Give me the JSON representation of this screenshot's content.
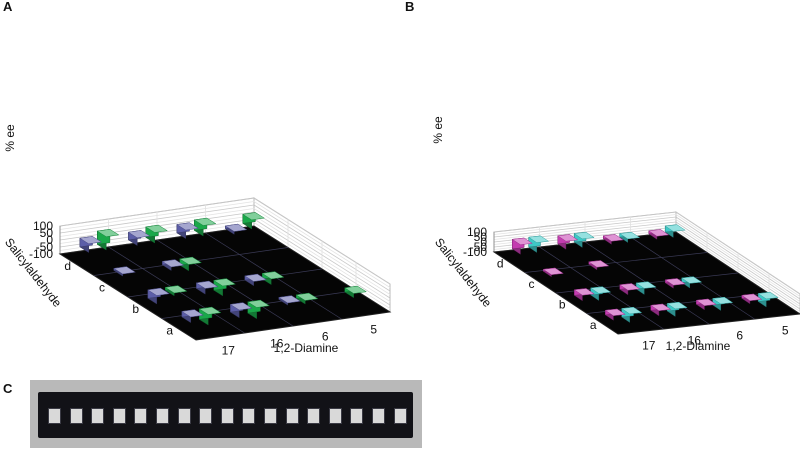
{
  "panels": {
    "a": {
      "letter": "A"
    },
    "b": {
      "letter": "B"
    },
    "c": {
      "letter": "C"
    }
  },
  "chart_data": [
    {
      "type": "bar",
      "subtype": "3d-bar",
      "panel": "A",
      "zlabel": "% ee",
      "zlim": [
        -100,
        100
      ],
      "zticks": [
        "100",
        "50",
        "0",
        "-50",
        "-100"
      ],
      "xlabel": "1,2-Diamine",
      "xticks": [
        "17",
        "16",
        "6",
        "5"
      ],
      "ylabel": "Salicylaldehyde",
      "yticks": [
        "d",
        "c",
        "b",
        "a"
      ],
      "colors": [
        "#5c5ea8",
        "#1aa84a"
      ],
      "grid": true,
      "bars": [
        {
          "diamine": "5",
          "aldehyde": "d",
          "series": 0,
          "value": -20
        },
        {
          "diamine": "5",
          "aldehyde": "d",
          "series": 1,
          "value": 65
        },
        {
          "diamine": "6",
          "aldehyde": "d",
          "series": 0,
          "value": 60
        },
        {
          "diamine": "6",
          "aldehyde": "d",
          "series": 1,
          "value": 75
        },
        {
          "diamine": "16",
          "aldehyde": "d",
          "series": 0,
          "value": 55
        },
        {
          "diamine": "16",
          "aldehyde": "d",
          "series": 1,
          "value": 75
        },
        {
          "diamine": "17",
          "aldehyde": "d",
          "series": 0,
          "value": 62
        },
        {
          "diamine": "17",
          "aldehyde": "d",
          "series": 1,
          "value": 95
        },
        {
          "diamine": "17",
          "aldehyde": "c",
          "series": 0,
          "value": -15
        },
        {
          "diamine": "17",
          "aldehyde": "b",
          "series": 0,
          "value": -60
        },
        {
          "diamine": "17",
          "aldehyde": "b",
          "series": 1,
          "value": -20
        },
        {
          "diamine": "17",
          "aldehyde": "a",
          "series": 0,
          "value": -40
        },
        {
          "diamine": "17",
          "aldehyde": "a",
          "series": 1,
          "value": -75
        },
        {
          "diamine": "16",
          "aldehyde": "c",
          "series": 0,
          "value": -25
        },
        {
          "diamine": "16",
          "aldehyde": "c",
          "series": 1,
          "value": -45
        },
        {
          "diamine": "16",
          "aldehyde": "b",
          "series": 0,
          "value": -40
        },
        {
          "diamine": "16",
          "aldehyde": "b",
          "series": 1,
          "value": -70
        },
        {
          "diamine": "16",
          "aldehyde": "a",
          "series": 0,
          "value": -55
        },
        {
          "diamine": "16",
          "aldehyde": "a",
          "series": 1,
          "value": -80
        },
        {
          "diamine": "6",
          "aldehyde": "b",
          "series": 0,
          "value": -30
        },
        {
          "diamine": "6",
          "aldehyde": "b",
          "series": 1,
          "value": -40
        },
        {
          "diamine": "6",
          "aldehyde": "a",
          "series": 0,
          "value": -15
        },
        {
          "diamine": "6",
          "aldehyde": "a",
          "series": 1,
          "value": -25
        },
        {
          "diamine": "5",
          "aldehyde": "a",
          "series": 1,
          "value": -30
        }
      ]
    },
    {
      "type": "bar",
      "subtype": "3d-bar",
      "panel": "B",
      "zlabel": "% ee",
      "zlim": [
        -100,
        100
      ],
      "zticks": [
        "100",
        "50",
        "0",
        "-50",
        "-100"
      ],
      "xlabel": "1,2-Diamine",
      "xticks": [
        "17",
        "16",
        "6",
        "5"
      ],
      "ylabel": "Salicylaldehyde",
      "yticks": [
        "d",
        "c",
        "b",
        "a"
      ],
      "colors": [
        "#c43cb0",
        "#3ec8c6"
      ],
      "grid": true,
      "bars": [
        {
          "diamine": "5",
          "aldehyde": "d",
          "series": 0,
          "value": 30
        },
        {
          "diamine": "5",
          "aldehyde": "d",
          "series": 1,
          "value": 60
        },
        {
          "diamine": "6",
          "aldehyde": "d",
          "series": 0,
          "value": 30
        },
        {
          "diamine": "6",
          "aldehyde": "d",
          "series": 1,
          "value": 35
        },
        {
          "diamine": "16",
          "aldehyde": "d",
          "series": 0,
          "value": 80
        },
        {
          "diamine": "16",
          "aldehyde": "d",
          "series": 1,
          "value": 85
        },
        {
          "diamine": "17",
          "aldehyde": "d",
          "series": 0,
          "value": 95
        },
        {
          "diamine": "17",
          "aldehyde": "d",
          "series": 1,
          "value": 98
        },
        {
          "diamine": "16",
          "aldehyde": "c",
          "series": 0,
          "value": 25
        },
        {
          "diamine": "17",
          "aldehyde": "c",
          "series": 0,
          "value": -20
        },
        {
          "diamine": "17",
          "aldehyde": "b",
          "series": 0,
          "value": -55
        },
        {
          "diamine": "17",
          "aldehyde": "b",
          "series": 1,
          "value": -70
        },
        {
          "diamine": "17",
          "aldehyde": "a",
          "series": 0,
          "value": -45
        },
        {
          "diamine": "17",
          "aldehyde": "a",
          "series": 1,
          "value": -85
        },
        {
          "diamine": "16",
          "aldehyde": "b",
          "series": 0,
          "value": -45
        },
        {
          "diamine": "16",
          "aldehyde": "b",
          "series": 1,
          "value": -60
        },
        {
          "diamine": "16",
          "aldehyde": "a",
          "series": 0,
          "value": -50
        },
        {
          "diamine": "16",
          "aldehyde": "a",
          "series": 1,
          "value": -75
        },
        {
          "diamine": "6",
          "aldehyde": "b",
          "series": 0,
          "value": -30
        },
        {
          "diamine": "6",
          "aldehyde": "b",
          "series": 1,
          "value": -45
        },
        {
          "diamine": "6",
          "aldehyde": "a",
          "series": 0,
          "value": -40
        },
        {
          "diamine": "6",
          "aldehyde": "a",
          "series": 1,
          "value": -65
        },
        {
          "diamine": "5",
          "aldehyde": "a",
          "series": 0,
          "value": -30
        },
        {
          "diamine": "5",
          "aldehyde": "a",
          "series": 1,
          "value": -80
        }
      ]
    }
  ]
}
